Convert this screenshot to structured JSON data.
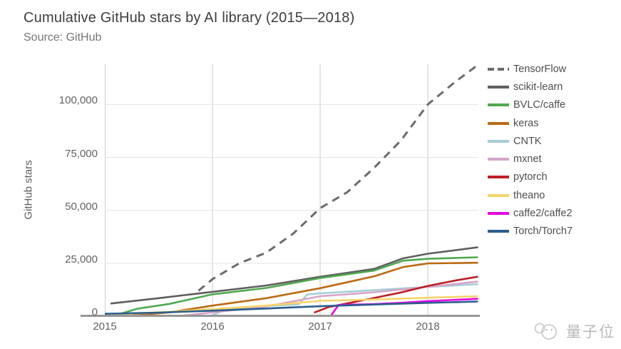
{
  "page": {
    "watermark": "量子位"
  },
  "chart_data": {
    "type": "line",
    "title": "Cumulative GitHub stars by AI library (2015—2018)",
    "subtitle": "Source: GitHub",
    "ylabel": "GitHub stars",
    "xlabel": "",
    "x_range": [
      2015,
      2018.47
    ],
    "y_range": [
      0,
      119000
    ],
    "grid": true,
    "legend_position": "right",
    "xticks": [
      {
        "v": 2015,
        "label": "2015"
      },
      {
        "v": 2016,
        "label": "2016"
      },
      {
        "v": 2017,
        "label": "2017"
      },
      {
        "v": 2018,
        "label": "2018"
      }
    ],
    "yticks": [
      {
        "v": 0,
        "label": "0"
      },
      {
        "v": 25000,
        "label": "25,000"
      },
      {
        "v": 50000,
        "label": "50,000"
      },
      {
        "v": 75000,
        "label": "75,000"
      },
      {
        "v": 100000,
        "label": "100,000"
      }
    ],
    "series": [
      {
        "name": "TensorFlow",
        "color": "#6b6b6b",
        "dash": true,
        "points": [
          [
            2015.87,
            12000
          ],
          [
            2016.0,
            17500
          ],
          [
            2016.25,
            25000
          ],
          [
            2016.5,
            30000
          ],
          [
            2016.75,
            39000
          ],
          [
            2017.0,
            51000
          ],
          [
            2017.25,
            58500
          ],
          [
            2017.5,
            70000
          ],
          [
            2017.75,
            83000
          ],
          [
            2018.0,
            100000
          ],
          [
            2018.25,
            110500
          ],
          [
            2018.46,
            118500
          ]
        ]
      },
      {
        "name": "scikit-learn",
        "color": "#5f5f5f",
        "dash": false,
        "points": [
          [
            2015.06,
            6000
          ],
          [
            2015.5,
            8500
          ],
          [
            2016.0,
            11500
          ],
          [
            2016.5,
            14500
          ],
          [
            2017.0,
            18600
          ],
          [
            2017.5,
            22300
          ],
          [
            2017.77,
            27300
          ],
          [
            2018.0,
            29500
          ],
          [
            2018.46,
            32500
          ]
        ]
      },
      {
        "name": "BVLC/caffe",
        "color": "#4fa84f",
        "dash": false,
        "points": [
          [
            2015.1,
            400
          ],
          [
            2015.3,
            3500
          ],
          [
            2015.6,
            5800
          ],
          [
            2016.0,
            10300
          ],
          [
            2016.5,
            13300
          ],
          [
            2017.0,
            18000
          ],
          [
            2017.5,
            21500
          ],
          [
            2017.77,
            26200
          ],
          [
            2018.0,
            27100
          ],
          [
            2018.46,
            27800
          ]
        ]
      },
      {
        "name": "keras",
        "color": "#bc6914",
        "dash": false,
        "points": [
          [
            2015.25,
            300
          ],
          [
            2015.6,
            1800
          ],
          [
            2016.0,
            5000
          ],
          [
            2016.5,
            8500
          ],
          [
            2017.0,
            13200
          ],
          [
            2017.5,
            18800
          ],
          [
            2017.77,
            23200
          ],
          [
            2018.0,
            24900
          ],
          [
            2018.46,
            25200
          ]
        ]
      },
      {
        "name": "CNTK",
        "color": "#a6ced6",
        "dash": false,
        "points": [
          [
            2016.0,
            400
          ],
          [
            2016.12,
            3300
          ],
          [
            2016.5,
            4800
          ],
          [
            2016.8,
            5600
          ],
          [
            2016.88,
            10200
          ],
          [
            2017.0,
            10800
          ],
          [
            2017.5,
            12300
          ],
          [
            2018.0,
            13800
          ],
          [
            2018.46,
            15100
          ]
        ]
      },
      {
        "name": "mxnet",
        "color": "#d7a4c9",
        "dash": false,
        "points": [
          [
            2015.7,
            100
          ],
          [
            2016.0,
            1800
          ],
          [
            2016.5,
            4600
          ],
          [
            2017.0,
            9400
          ],
          [
            2017.5,
            11300
          ],
          [
            2018.0,
            13800
          ],
          [
            2018.46,
            16300
          ]
        ]
      },
      {
        "name": "pytorch",
        "color": "#bb2026",
        "dash": false,
        "points": [
          [
            2016.95,
            1800
          ],
          [
            2017.08,
            4300
          ],
          [
            2017.3,
            6500
          ],
          [
            2017.5,
            8600
          ],
          [
            2017.75,
            11200
          ],
          [
            2018.0,
            14300
          ],
          [
            2018.25,
            16800
          ],
          [
            2018.46,
            18600
          ]
        ]
      },
      {
        "name": "theano",
        "color": "#f7d46a",
        "dash": false,
        "points": [
          [
            2015.08,
            800
          ],
          [
            2015.5,
            1800
          ],
          [
            2016.0,
            3300
          ],
          [
            2016.5,
            5000
          ],
          [
            2017.0,
            7200
          ],
          [
            2017.5,
            7900
          ],
          [
            2018.0,
            8700
          ],
          [
            2018.46,
            9400
          ]
        ]
      },
      {
        "name": "caffe2/caffe2",
        "color": "#e307e3",
        "dash": false,
        "points": [
          [
            2015.5,
            50
          ],
          [
            2017.1,
            150
          ],
          [
            2017.17,
            5300
          ],
          [
            2017.5,
            5700
          ],
          [
            2017.75,
            6300
          ],
          [
            2018.0,
            7100
          ],
          [
            2018.46,
            8200
          ]
        ]
      },
      {
        "name": "Torch/Torch7",
        "color": "#2a5e8d",
        "dash": false,
        "points": [
          [
            2015.0,
            1100
          ],
          [
            2015.5,
            1700
          ],
          [
            2016.0,
            2600
          ],
          [
            2016.5,
            3600
          ],
          [
            2017.0,
            4700
          ],
          [
            2017.5,
            5500
          ],
          [
            2018.0,
            6300
          ],
          [
            2018.46,
            6900
          ]
        ]
      }
    ]
  }
}
